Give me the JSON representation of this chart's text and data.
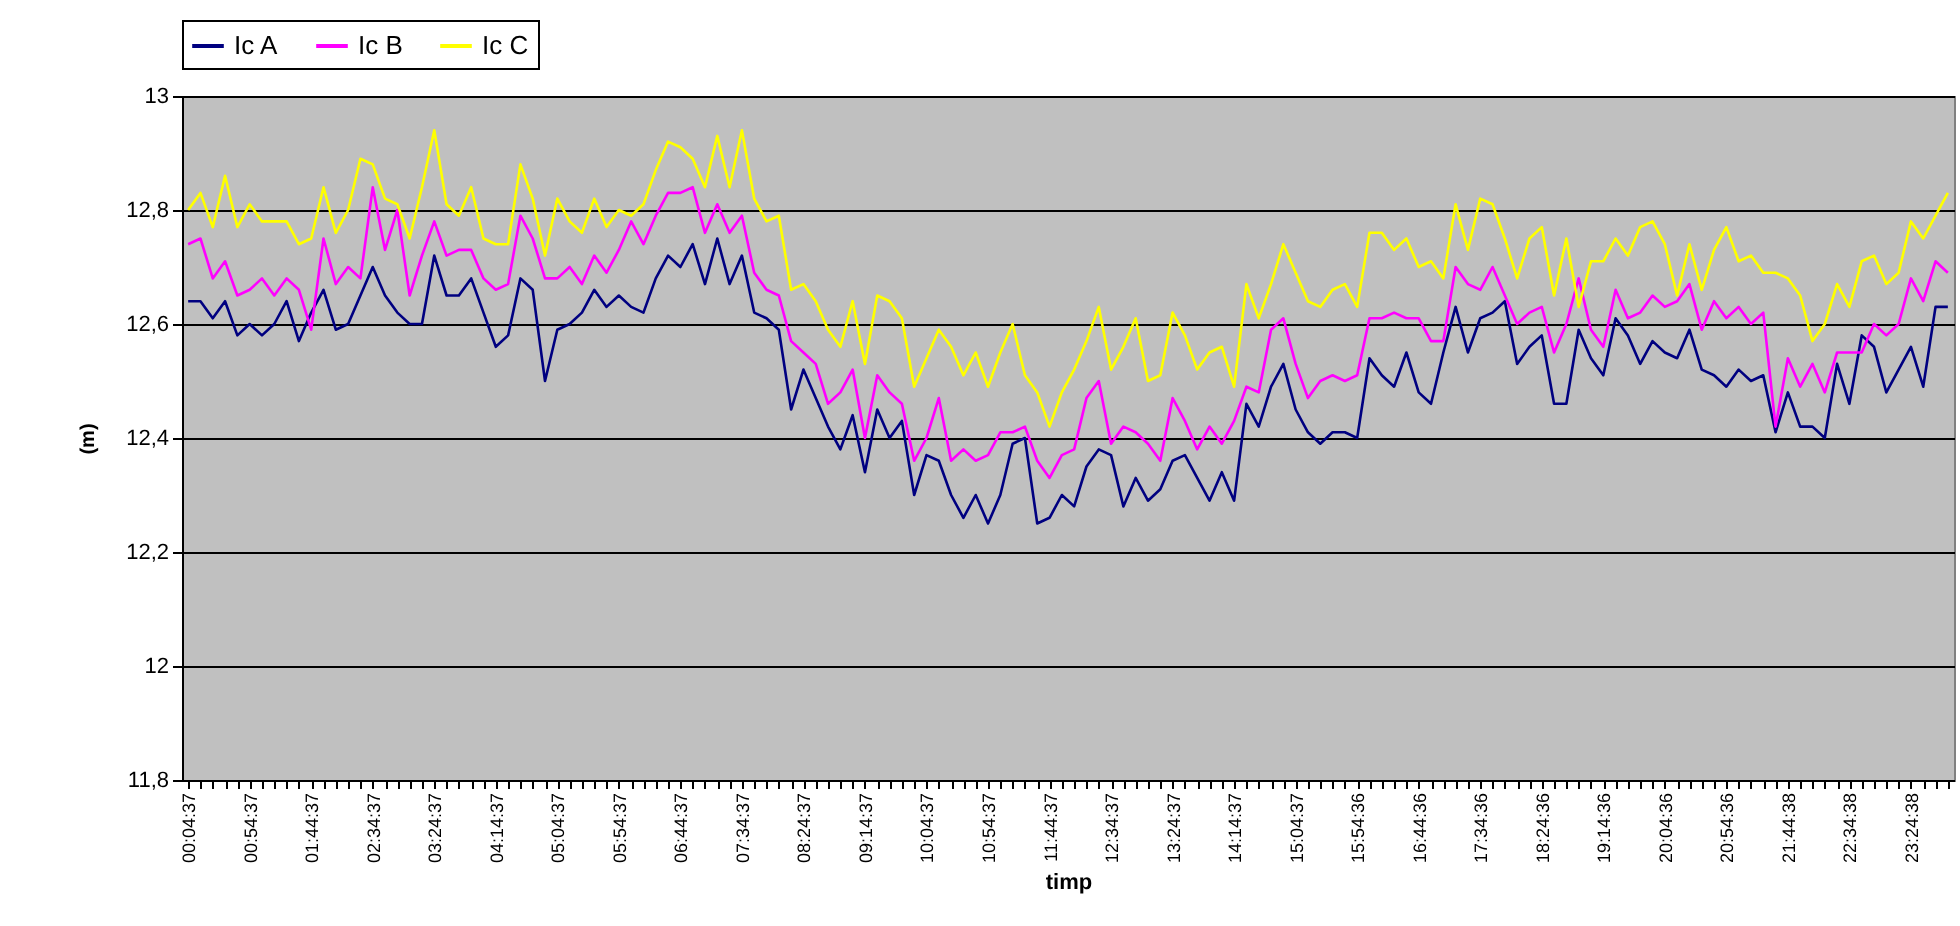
{
  "chart_data": {
    "type": "line",
    "xlabel": "timp",
    "ylabel": "(m)",
    "legend": "top",
    "grid": "y",
    "ylim": [
      11.8,
      13
    ],
    "yticks": [
      {
        "value": 11.8,
        "label": "11,8"
      },
      12,
      {
        "value": 12.2,
        "label": "12,2"
      },
      {
        "value": 12.4,
        "label": "12,4"
      },
      {
        "value": 12.6,
        "label": "12,6"
      },
      {
        "value": 12.8,
        "label": "12,8"
      },
      13
    ],
    "categories": [
      "00:04:37",
      null,
      null,
      null,
      null,
      "00:54:37",
      null,
      null,
      null,
      null,
      "01:44:37",
      null,
      null,
      null,
      null,
      "02:34:37",
      null,
      null,
      null,
      null,
      "03:24:37",
      null,
      null,
      null,
      null,
      "04:14:37",
      null,
      null,
      null,
      null,
      "05:04:37",
      null,
      null,
      null,
      null,
      "05:54:37",
      null,
      null,
      null,
      null,
      "06:44:37",
      null,
      null,
      null,
      null,
      "07:34:37",
      null,
      null,
      null,
      null,
      "08:24:37",
      null,
      null,
      null,
      null,
      "09:14:37",
      null,
      null,
      null,
      null,
      "10:04:37",
      null,
      null,
      null,
      null,
      "10:54:37",
      null,
      null,
      null,
      null,
      "11:44:37",
      null,
      null,
      null,
      null,
      "12:34:37",
      null,
      null,
      null,
      null,
      "13:24:37",
      null,
      null,
      null,
      null,
      "14:14:37",
      null,
      null,
      null,
      null,
      "15:04:37",
      null,
      null,
      null,
      null,
      "15:54:36",
      null,
      null,
      null,
      null,
      "16:44:36",
      null,
      null,
      null,
      null,
      "17:34:36",
      null,
      null,
      null,
      null,
      "18:24:36",
      null,
      null,
      null,
      null,
      "19:14:36",
      null,
      null,
      null,
      null,
      "20:04:36",
      null,
      null,
      null,
      null,
      "20:54:36",
      null,
      null,
      null,
      null,
      "21:44:38",
      null,
      null,
      null,
      null,
      "22:34:38",
      null,
      null,
      null,
      null,
      "23:24:38",
      null,
      null,
      null
    ],
    "series": [
      {
        "name": "Ic A",
        "color": "#000080",
        "values": [
          12.64,
          12.64,
          12.61,
          12.64,
          12.58,
          12.6,
          12.58,
          12.6,
          12.64,
          12.57,
          12.62,
          12.66,
          12.59,
          12.6,
          12.65,
          12.7,
          12.65,
          12.62,
          12.6,
          12.6,
          12.72,
          12.65,
          12.65,
          12.68,
          12.62,
          12.56,
          12.58,
          12.68,
          12.66,
          12.5,
          12.59,
          12.6,
          12.62,
          12.66,
          12.63,
          12.65,
          12.63,
          12.62,
          12.68,
          12.72,
          12.7,
          12.74,
          12.67,
          12.75,
          12.67,
          12.72,
          12.62,
          12.61,
          12.59,
          12.45,
          12.52,
          12.47,
          12.42,
          12.38,
          12.44,
          12.34,
          12.45,
          12.4,
          12.43,
          12.3,
          12.37,
          12.36,
          12.3,
          12.26,
          12.3,
          12.25,
          12.3,
          12.39,
          12.4,
          12.25,
          12.26,
          12.3,
          12.28,
          12.35,
          12.38,
          12.37,
          12.28,
          12.33,
          12.29,
          12.31,
          12.36,
          12.37,
          12.33,
          12.29,
          12.34,
          12.29,
          12.46,
          12.42,
          12.49,
          12.53,
          12.45,
          12.41,
          12.39,
          12.41,
          12.41,
          12.4,
          12.54,
          12.51,
          12.49,
          12.55,
          12.48,
          12.46,
          12.55,
          12.63,
          12.55,
          12.61,
          12.62,
          12.64,
          12.53,
          12.56,
          12.58,
          12.46,
          12.46,
          12.59,
          12.54,
          12.51,
          12.61,
          12.58,
          12.53,
          12.57,
          12.55,
          12.54,
          12.59,
          12.52,
          12.51,
          12.49,
          12.52,
          12.5,
          12.51,
          12.41,
          12.48,
          12.42,
          12.42,
          12.4,
          12.53,
          12.46,
          12.58,
          12.56,
          12.48,
          12.52,
          12.56,
          12.49,
          12.63,
          12.63
        ]
      },
      {
        "name": "Ic B",
        "color": "#ff00ff",
        "values": [
          12.74,
          12.75,
          12.68,
          12.71,
          12.65,
          12.66,
          12.68,
          12.65,
          12.68,
          12.66,
          12.59,
          12.75,
          12.67,
          12.7,
          12.68,
          12.84,
          12.73,
          12.8,
          12.65,
          12.72,
          12.78,
          12.72,
          12.73,
          12.73,
          12.68,
          12.66,
          12.67,
          12.79,
          12.75,
          12.68,
          12.68,
          12.7,
          12.67,
          12.72,
          12.69,
          12.73,
          12.78,
          12.74,
          12.79,
          12.83,
          12.83,
          12.84,
          12.76,
          12.81,
          12.76,
          12.79,
          12.69,
          12.66,
          12.65,
          12.57,
          12.55,
          12.53,
          12.46,
          12.48,
          12.52,
          12.4,
          12.51,
          12.48,
          12.46,
          12.36,
          12.4,
          12.47,
          12.36,
          12.38,
          12.36,
          12.37,
          12.41,
          12.41,
          12.42,
          12.36,
          12.33,
          12.37,
          12.38,
          12.47,
          12.5,
          12.39,
          12.42,
          12.41,
          12.39,
          12.36,
          12.47,
          12.43,
          12.38,
          12.42,
          12.39,
          12.43,
          12.49,
          12.48,
          12.59,
          12.61,
          12.53,
          12.47,
          12.5,
          12.51,
          12.5,
          12.51,
          12.61,
          12.61,
          12.62,
          12.61,
          12.61,
          12.57,
          12.57,
          12.7,
          12.67,
          12.66,
          12.7,
          12.65,
          12.6,
          12.62,
          12.63,
          12.55,
          12.6,
          12.68,
          12.59,
          12.56,
          12.66,
          12.61,
          12.62,
          12.65,
          12.63,
          12.64,
          12.67,
          12.59,
          12.64,
          12.61,
          12.63,
          12.6,
          12.62,
          12.42,
          12.54,
          12.49,
          12.53,
          12.48,
          12.55,
          12.55,
          12.55,
          12.6,
          12.58,
          12.6,
          12.68,
          12.64,
          12.71,
          12.69
        ]
      },
      {
        "name": "Ic C",
        "color": "#ffff00",
        "values": [
          12.8,
          12.83,
          12.77,
          12.86,
          12.77,
          12.81,
          12.78,
          12.78,
          12.78,
          12.74,
          12.75,
          12.84,
          12.76,
          12.8,
          12.89,
          12.88,
          12.82,
          12.81,
          12.75,
          12.84,
          12.94,
          12.81,
          12.79,
          12.84,
          12.75,
          12.74,
          12.74,
          12.88,
          12.82,
          12.72,
          12.82,
          12.78,
          12.76,
          12.82,
          12.77,
          12.8,
          12.79,
          12.81,
          12.87,
          12.92,
          12.91,
          12.89,
          12.84,
          12.93,
          12.84,
          12.94,
          12.82,
          12.78,
          12.79,
          12.66,
          12.67,
          12.64,
          12.59,
          12.56,
          12.64,
          12.53,
          12.65,
          12.64,
          12.61,
          12.49,
          12.54,
          12.59,
          12.56,
          12.51,
          12.55,
          12.49,
          12.55,
          12.6,
          12.51,
          12.48,
          12.42,
          12.48,
          12.52,
          12.57,
          12.63,
          12.52,
          12.56,
          12.61,
          12.5,
          12.51,
          12.62,
          12.58,
          12.52,
          12.55,
          12.56,
          12.49,
          12.67,
          12.61,
          12.67,
          12.74,
          12.69,
          12.64,
          12.63,
          12.66,
          12.67,
          12.63,
          12.76,
          12.76,
          12.73,
          12.75,
          12.7,
          12.71,
          12.68,
          12.81,
          12.73,
          12.82,
          12.81,
          12.75,
          12.68,
          12.75,
          12.77,
          12.65,
          12.75,
          12.63,
          12.71,
          12.71,
          12.75,
          12.72,
          12.77,
          12.78,
          12.74,
          12.65,
          12.74,
          12.66,
          12.73,
          12.77,
          12.71,
          12.72,
          12.69,
          12.69,
          12.68,
          12.65,
          12.57,
          12.6,
          12.67,
          12.63,
          12.71,
          12.72,
          12.67,
          12.69,
          12.78,
          12.75,
          12.79,
          12.83
        ]
      }
    ]
  }
}
